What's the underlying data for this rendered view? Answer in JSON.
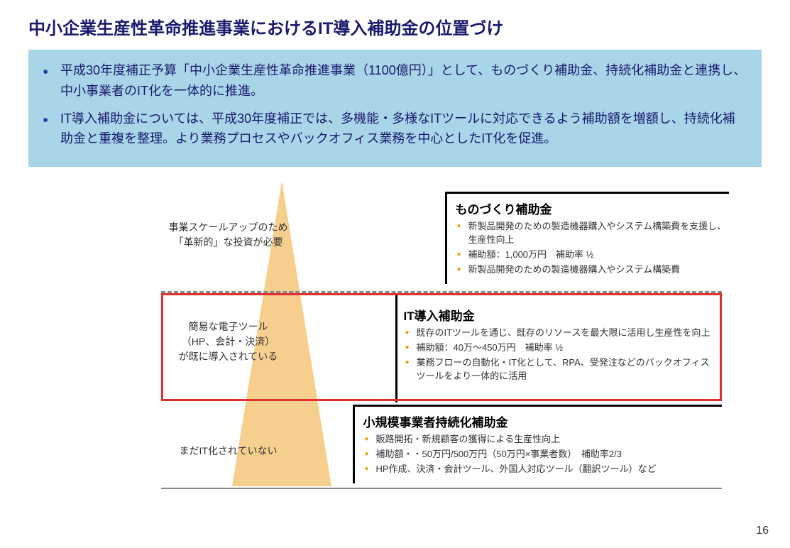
{
  "title": "中小企業生産性革命推進事業におけるIT導入補助金の位置づけ",
  "summary": {
    "items": [
      "平成30年度補正予算「中小企業生産性革命推進事業（1100億円）」として、ものづくり補助金、持続化補助金と連携し、中小事業者のIT化を一体的に推進。",
      "IT導入補助金については、平成30年度補正では、多機能・多様なITツールに対応できるよう補助額を増額し、持続化補助金と重複を整理。より業務プロセスやバックオフィス業務を中心としたIT化を促進。"
    ]
  },
  "levels": {
    "top": "事業スケールアップのため\n「革新的」な投資が必要",
    "mid": "簡易な電子ツール\n（HP、会計・決済）\nが既に導入されている",
    "bot": "まだIT化されていない"
  },
  "sections": {
    "s1": {
      "title": "ものづくり補助金",
      "items": [
        "新製品開発のための製造機器購入やシステム構築費を支援し、生産性向上",
        "補助額：1,000万円　補助率 ½",
        "新製品開発のための製造機器購入やシステム構築費"
      ]
    },
    "s2": {
      "title": "IT導入補助金",
      "items": [
        "既存のITツールを通じ、既存のリソースを最大限に活用し生産性を向上",
        "補助額：40万～450万円　補助率 ½",
        "業務フローの自動化・IT化として、RPA、受発注などのバックオフィスツールをより一体的に活用"
      ]
    },
    "s3": {
      "title": "小規模事業者持続化補助金",
      "items": [
        "販路開拓・新規顧客の獲得による生産性向上",
        "補助額・・50万円/500万円（50万円×事業者数）　補助率2/3",
        "HP作成、決済・会計ツール、外国人対応ツール（翻訳ツール）など"
      ]
    }
  },
  "pageNumber": "16",
  "colors": {
    "titleColor": "#1a1a6e",
    "summaryBg": "#a8d5e8",
    "triangleFill": "#f5c77a",
    "bulletOrange": "#f39c12",
    "redFrame": "#e03030"
  }
}
